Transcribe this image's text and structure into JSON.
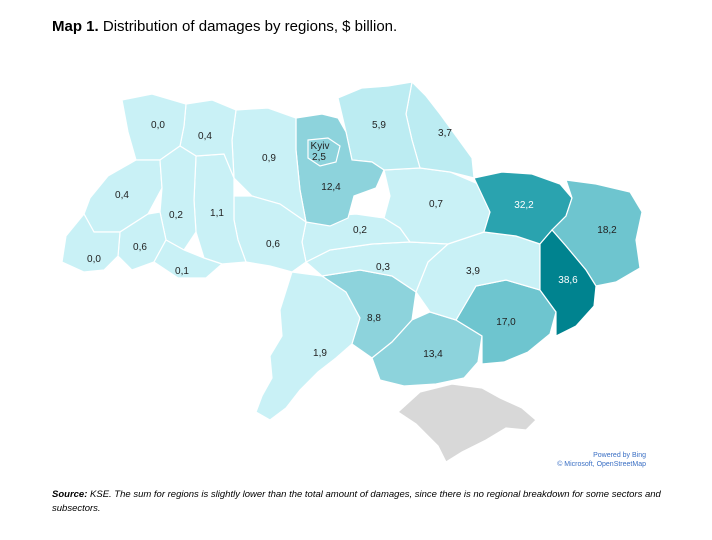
{
  "title": {
    "prefix": "Map 1.",
    "text": "Distribution of damages by regions, $ billion."
  },
  "attribution": {
    "line1": "Powered by Bing",
    "line2": "© Microsoft, OpenStreetMap"
  },
  "source": {
    "label": "Source:",
    "text": "KSE. The sum for regions is slightly lower than the total amount of damages, since there is no regional breakdown for some sectors and subsectors."
  },
  "colors": {
    "c0": "#c9f1f6",
    "c1": "#bcecf2",
    "c2": "#a9e3ea",
    "c3": "#8dd3dc",
    "c4": "#6ec5cf",
    "c5": "#2aa3af",
    "c6": "#00838f",
    "crimea": "#d8d8d8"
  },
  "regions": {
    "volyn": "0,0",
    "rivne": "0,4",
    "lviv": "0,4",
    "zakarpattia": "0,0",
    "ivano": "0,6",
    "chernivtsi": "0,1",
    "ternopil": "0,2",
    "khmelnytskyi": "1,1",
    "zhytomyr": "0,9",
    "vinnytsia": "0,6",
    "kyiv_city_name": "Kyiv",
    "kyiv_city": "2,5",
    "kyiv_oblast": "12,4",
    "chernihiv": "5,9",
    "sumy": "3,7",
    "poltava": "0,7",
    "cherkasy": "0,2",
    "kirovohrad": "0,3",
    "kharkiv": "32,2",
    "luhansk": "18,2",
    "donetsk": "38,6",
    "dnipro": "3,9",
    "zaporizhzhia": "17,0",
    "mykolaiv": "8,8",
    "kherson": "13,4",
    "odesa": "1,9"
  }
}
